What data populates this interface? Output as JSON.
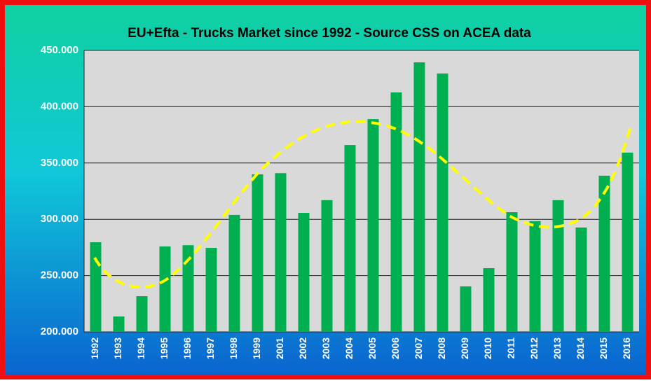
{
  "chart_data": {
    "type": "bar",
    "title": "EU+Efta - Trucks Market since 1992 - Source CSS on  ACEA data",
    "categories": [
      "1992",
      "1993",
      "1994",
      "1995",
      "1996",
      "1997",
      "1998",
      "1999",
      "2001",
      "2002",
      "2003",
      "2004",
      "2005",
      "2006",
      "2007",
      "2008",
      "2009",
      "2010",
      "2011",
      "2012",
      "2013",
      "2014",
      "2015",
      "2016"
    ],
    "values": [
      279600,
      213700,
      231700,
      275900,
      277000,
      274600,
      303900,
      339900,
      341000,
      305700,
      317000,
      366000,
      389000,
      412700,
      439400,
      429500,
      240400,
      256600,
      306300,
      298300,
      317000,
      292700,
      338700,
      359200
    ],
    "color": "#00b050",
    "ylim": [
      200000,
      450000
    ],
    "yticks": [
      {
        "value": 200000,
        "label": "200.000"
      },
      {
        "value": 250000,
        "label": "250.000"
      },
      {
        "value": 300000,
        "label": "300.000"
      },
      {
        "value": 350000,
        "label": "350.000"
      },
      {
        "value": 400000,
        "label": "400.000"
      },
      {
        "value": 450000,
        "label": "450.000"
      }
    ],
    "grid": true
  }
}
